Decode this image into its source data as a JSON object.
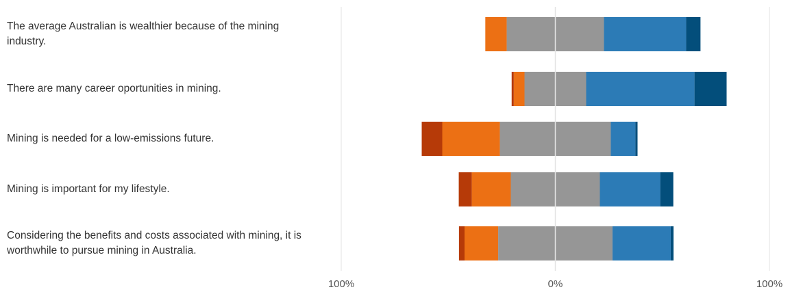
{
  "chart_data": {
    "type": "diverging_bar",
    "categories": [
      "The average Australian is wealthier because of the mining industry.",
      "There are many career oportunities in mining.",
      "Mining is needed for a low-emissions future.",
      "Mining is important for my lifestyle.",
      "Considering the benefits and costs associated with mining, it is worthwhile to pursue mining in Australia."
    ],
    "series": [
      {
        "color": "#b63a08",
        "values": [
          0,
          1,
          9.6,
          6.1,
          2.6
        ]
      },
      {
        "color": "#ec7014",
        "values": [
          10,
          5,
          26.9,
          18.2,
          15.7
        ]
      },
      {
        "color": "#969696",
        "values": [
          45.4,
          28.8,
          51.8,
          41.6,
          53.4
        ],
        "neutral": true
      },
      {
        "color": "#2c7bb6",
        "values": [
          38.4,
          50.6,
          11.5,
          28.2,
          27.2
        ]
      },
      {
        "color": "#034e7b",
        "values": [
          6.7,
          15,
          1,
          6.1,
          1.3
        ]
      }
    ],
    "xlim": [
      -100,
      100
    ],
    "xticks": [
      {
        "value": -100,
        "label": "100%"
      },
      {
        "value": 0,
        "label": "0%"
      },
      {
        "value": 100,
        "label": "100%"
      }
    ],
    "grid": true
  }
}
